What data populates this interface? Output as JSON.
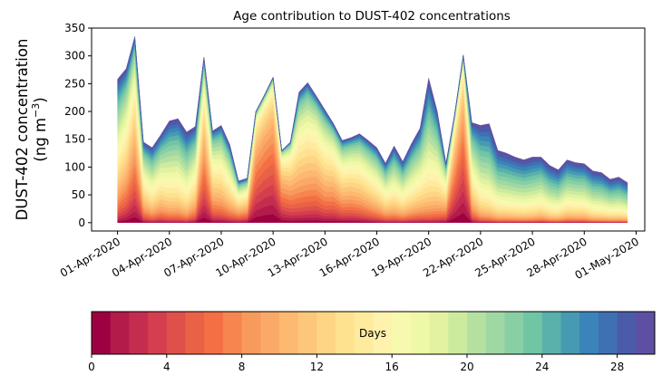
{
  "chart_data": {
    "type": "area",
    "stacked": true,
    "title": "Age contribution to DUST-402 concentrations",
    "ylabel_line1": "DUST-402 concentration",
    "ylabel_line2_prefix": "(ng m",
    "ylabel_line2_sup": "−3",
    "ylabel_line2_suffix": ")",
    "xlabel": "",
    "ylim": [
      -15,
      350
    ],
    "yticks": [
      0,
      50,
      100,
      150,
      200,
      250,
      300,
      350
    ],
    "x_start": "2020-04-01T00:00",
    "x_step_hours": 12,
    "xlim_days": [
      -1.5,
      30.5
    ],
    "xticks": [
      {
        "day": 0,
        "label": "01-Apr-2020"
      },
      {
        "day": 3,
        "label": "04-Apr-2020"
      },
      {
        "day": 6,
        "label": "07-Apr-2020"
      },
      {
        "day": 9,
        "label": "10-Apr-2020"
      },
      {
        "day": 12,
        "label": "13-Apr-2020"
      },
      {
        "day": 15,
        "label": "16-Apr-2020"
      },
      {
        "day": 18,
        "label": "19-Apr-2020"
      },
      {
        "day": 21,
        "label": "22-Apr-2020"
      },
      {
        "day": 24,
        "label": "25-Apr-2020"
      },
      {
        "day": 27,
        "label": "28-Apr-2020"
      },
      {
        "day": 30,
        "label": "01-May-2020"
      }
    ],
    "total": [
      258,
      277,
      335,
      145,
      135,
      158,
      183,
      187,
      163,
      173,
      298,
      165,
      175,
      140,
      75,
      80,
      200,
      230,
      262,
      130,
      145,
      235,
      252,
      228,
      203,
      178,
      148,
      153,
      160,
      148,
      135,
      107,
      138,
      110,
      142,
      170,
      260,
      200,
      107,
      195,
      302,
      180,
      175,
      178,
      130,
      125,
      118,
      113,
      118,
      118,
      103,
      95,
      113,
      108,
      106,
      93,
      90,
      78,
      82,
      72
    ],
    "mean_age_days": [
      17,
      14,
      10,
      16,
      18,
      17,
      19,
      19,
      20,
      17,
      9,
      14,
      15,
      16,
      14,
      13,
      6,
      5,
      5,
      8,
      10,
      13,
      13,
      12,
      13,
      12,
      13,
      13,
      14,
      15,
      16,
      17,
      18,
      18,
      18,
      18,
      20,
      18,
      14,
      7,
      5,
      17,
      21,
      22,
      22,
      22,
      22,
      22,
      22,
      21,
      22,
      22,
      21,
      21,
      21,
      22,
      22,
      22,
      22,
      22
    ],
    "age_spread_days": [
      9,
      9,
      9,
      8,
      8,
      8,
      8,
      8,
      8,
      8,
      8,
      8,
      8,
      8,
      8,
      8,
      7,
      7,
      7,
      7,
      7,
      8,
      8,
      8,
      8,
      8,
      8,
      8,
      8,
      8,
      8,
      8,
      8,
      8,
      8,
      8,
      8,
      8,
      8,
      7,
      7,
      8,
      8,
      8,
      8,
      8,
      8,
      8,
      8,
      8,
      8,
      8,
      8,
      8,
      8,
      8,
      8,
      8,
      8,
      8
    ],
    "colorbar": {
      "label": "Days",
      "range": [
        0,
        30
      ],
      "n_bins": 30,
      "ticks": [
        "0",
        "4",
        "8",
        "12",
        "16",
        "20",
        "24",
        "28"
      ],
      "colormap": "Spectral",
      "colors": [
        "#9e0142",
        "#b31b4a",
        "#c42d4e",
        "#d53e4f",
        "#e0504a",
        "#ea6246",
        "#f47044",
        "#f68550",
        "#f89a5c",
        "#fba969",
        "#fdb96f",
        "#fdc77b",
        "#fed585",
        "#fee28f",
        "#feeb9e",
        "#fff2ad",
        "#f7faae",
        "#eff8a6",
        "#e2f2a0",
        "#cceb9e",
        "#b5e1a0",
        "#a0d8a3",
        "#89cfa5",
        "#70c5a5",
        "#5ab1ab",
        "#469ab1",
        "#3a84b9",
        "#3f70b2",
        "#4a5ca9",
        "#5e4fa2"
      ]
    }
  }
}
